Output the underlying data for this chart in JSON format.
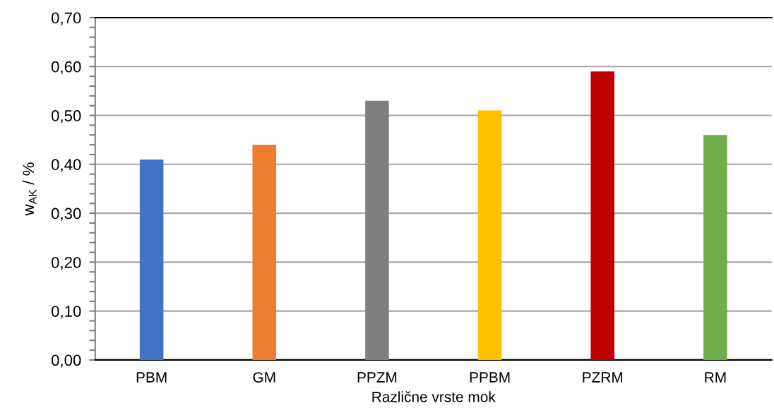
{
  "chart_data": {
    "type": "bar",
    "xlabel": "Različne vrste mok",
    "ylabel": "w$_{AK}$ / %",
    "categories": [
      "PBM",
      "GM",
      "PPZM",
      "PPBM",
      "PZRM",
      "RM"
    ],
    "values": [
      0.41,
      0.44,
      0.53,
      0.51,
      0.59,
      0.46
    ],
    "colors": [
      "#4472c4",
      "#ed7d31",
      "#7f7f7f",
      "#ffc000",
      "#c00000",
      "#70ad47"
    ],
    "ylim": [
      0,
      0.7
    ],
    "yticks": [
      {
        "value": 0,
        "label": "0,00"
      },
      {
        "value": 0.1,
        "label": "0,10"
      },
      {
        "value": 0.2,
        "label": "0,20"
      },
      {
        "value": 0.3,
        "label": "0,30"
      },
      {
        "value": 0.4,
        "label": "0,40"
      },
      {
        "value": 0.5,
        "label": "0,50"
      },
      {
        "value": 0.6,
        "label": "0,60"
      },
      {
        "value": 0.7,
        "label": "0,70"
      }
    ],
    "grid": "y",
    "legend": false
  }
}
